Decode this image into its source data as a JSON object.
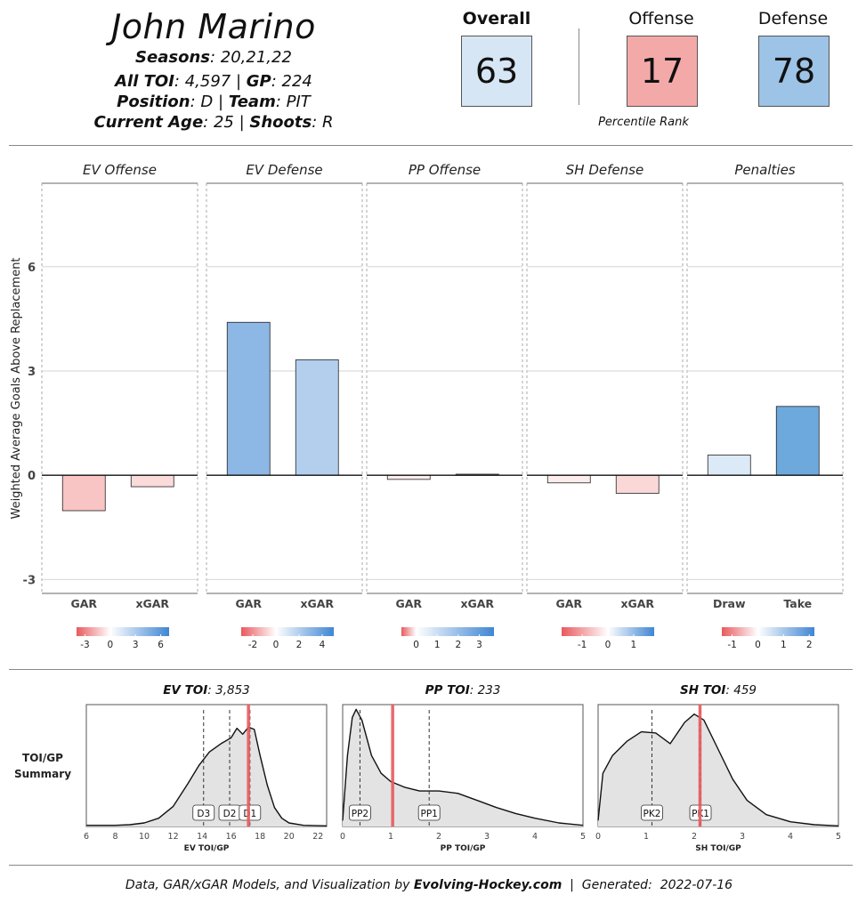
{
  "player": {
    "name": "John Marino",
    "seasons_label": "Seasons",
    "seasons": "20,21,22",
    "toi_label": "All TOI",
    "toi": "4,597",
    "gp_label": "GP",
    "gp": "224",
    "position_label": "Position",
    "position": "D",
    "team_label": "Team",
    "team": "PIT",
    "age_label": "Current Age",
    "age": "25",
    "shoots_label": "Shoots",
    "shoots": "R"
  },
  "ratings": {
    "overall_label": "Overall",
    "overall": "63",
    "offense_label": "Offense",
    "offense": "17",
    "defense_label": "Defense",
    "defense": "78",
    "percentile_label": "Percentile Rank",
    "colors": {
      "overall": "#d6e6f5",
      "offense": "#f4a9a9",
      "defense": "#9dc3e6"
    }
  },
  "chart_data": [
    {
      "type": "bar",
      "ylabel": "Weighted Average Goals Above Replacement",
      "ylim": [
        -3.4,
        8.4
      ],
      "yticks": [
        -3,
        0,
        3,
        6
      ],
      "grid": true,
      "panels": [
        {
          "title": "EV Offense",
          "categories": [
            "GAR",
            "xGAR"
          ],
          "values": [
            -1.02,
            -0.33
          ],
          "colors": [
            "#f8c4c4",
            "#fbdada"
          ],
          "scale": {
            "min": -4,
            "max": 7,
            "ticks": [
              "-3",
              "0",
              "3",
              "6"
            ],
            "tickvals": [
              -3,
              0,
              3,
              6
            ]
          }
        },
        {
          "title": "EV Defense",
          "categories": [
            "GAR",
            "xGAR"
          ],
          "values": [
            4.4,
            3.32
          ],
          "colors": [
            "#8db7e4",
            "#b4cfee"
          ],
          "scale": {
            "min": -3,
            "max": 5,
            "ticks": [
              "-2",
              "0",
              "2",
              "4"
            ],
            "tickvals": [
              -2,
              0,
              2,
              4
            ]
          }
        },
        {
          "title": "PP Offense",
          "categories": [
            "GAR",
            "xGAR"
          ],
          "values": [
            -0.12,
            0.03
          ],
          "colors": [
            "#fdeeee",
            "#fbfcfe"
          ],
          "scale": {
            "min": -0.7,
            "max": 3.7,
            "ticks": [
              "0",
              "1",
              "2",
              "3"
            ],
            "tickvals": [
              0,
              1,
              2,
              3
            ]
          }
        },
        {
          "title": "SH Defense",
          "categories": [
            "GAR",
            "xGAR"
          ],
          "values": [
            -0.22,
            -0.52
          ],
          "colors": [
            "#fcecec",
            "#fad8d8"
          ],
          "scale": {
            "min": -1.8,
            "max": 1.8,
            "ticks": [
              "-1",
              "0",
              "1"
            ],
            "tickvals": [
              -1,
              0,
              1
            ]
          }
        },
        {
          "title": "Penalties",
          "categories": [
            "Draw",
            "Take"
          ],
          "values": [
            0.58,
            1.98
          ],
          "colors": [
            "#dce9f7",
            "#6da9dc"
          ],
          "scale": {
            "min": -1.4,
            "max": 2.2,
            "ticks": [
              "-1",
              "0",
              "1",
              "2"
            ],
            "tickvals": [
              -1,
              0,
              1,
              2
            ]
          }
        }
      ]
    },
    {
      "type": "area",
      "row_label_line1": "TOI/GP",
      "row_label_line2": "Summary",
      "panels": [
        {
          "title_label": "EV TOI",
          "title_value": "3,853",
          "xlabel": "EV TOI/GP",
          "xlim": [
            6,
            22.6
          ],
          "xticks": [
            6,
            8,
            10,
            12,
            14,
            16,
            18,
            20,
            22
          ],
          "density": [
            [
              6,
              0.01
            ],
            [
              8,
              0.01
            ],
            [
              9,
              0.015
            ],
            [
              10,
              0.03
            ],
            [
              11,
              0.07
            ],
            [
              12,
              0.17
            ],
            [
              13,
              0.36
            ],
            [
              13.8,
              0.52
            ],
            [
              14.5,
              0.63
            ],
            [
              15.3,
              0.7
            ],
            [
              16,
              0.75
            ],
            [
              16.4,
              0.83
            ],
            [
              16.8,
              0.78
            ],
            [
              17.2,
              0.84
            ],
            [
              17.6,
              0.82
            ],
            [
              18,
              0.6
            ],
            [
              18.5,
              0.35
            ],
            [
              19,
              0.16
            ],
            [
              19.5,
              0.07
            ],
            [
              20,
              0.03
            ],
            [
              21,
              0.01
            ],
            [
              22.6,
              0.005
            ]
          ],
          "markers": [
            {
              "label": "D3",
              "x": 14.1
            },
            {
              "label": "D2",
              "x": 15.9
            },
            {
              "label": "D1",
              "x": 17.3
            }
          ],
          "player_x": 17.2
        },
        {
          "title_label": "PP TOI",
          "title_value": "233",
          "xlabel": "PP TOI/GP",
          "xlim": [
            0,
            5
          ],
          "xticks": [
            0,
            1,
            2,
            3,
            4,
            5
          ],
          "density": [
            [
              0,
              0.05
            ],
            [
              0.1,
              0.6
            ],
            [
              0.2,
              0.92
            ],
            [
              0.28,
              0.99
            ],
            [
              0.4,
              0.9
            ],
            [
              0.6,
              0.6
            ],
            [
              0.8,
              0.45
            ],
            [
              1.0,
              0.38
            ],
            [
              1.3,
              0.33
            ],
            [
              1.6,
              0.3
            ],
            [
              2.0,
              0.3
            ],
            [
              2.4,
              0.28
            ],
            [
              2.8,
              0.22
            ],
            [
              3.2,
              0.16
            ],
            [
              3.6,
              0.11
            ],
            [
              4.0,
              0.07
            ],
            [
              4.5,
              0.03
            ],
            [
              5,
              0.01
            ]
          ],
          "markers": [
            {
              "label": "PP2",
              "x": 0.36
            },
            {
              "label": "PP1",
              "x": 1.8
            }
          ],
          "player_x": 1.04
        },
        {
          "title_label": "SH TOI",
          "title_value": "459",
          "xlabel": "SH TOI/GP",
          "xlim": [
            0,
            5
          ],
          "xticks": [
            0,
            1,
            2,
            3,
            4,
            5
          ],
          "density": [
            [
              0,
              0.05
            ],
            [
              0.1,
              0.45
            ],
            [
              0.3,
              0.6
            ],
            [
              0.6,
              0.72
            ],
            [
              0.9,
              0.8
            ],
            [
              1.2,
              0.79
            ],
            [
              1.5,
              0.7
            ],
            [
              1.8,
              0.88
            ],
            [
              2.0,
              0.95
            ],
            [
              2.2,
              0.9
            ],
            [
              2.5,
              0.65
            ],
            [
              2.8,
              0.4
            ],
            [
              3.1,
              0.22
            ],
            [
              3.5,
              0.1
            ],
            [
              4.0,
              0.04
            ],
            [
              4.5,
              0.015
            ],
            [
              5,
              0.005
            ]
          ],
          "markers": [
            {
              "label": "PK2",
              "x": 1.12
            },
            {
              "label": "PK1",
              "x": 2.13
            }
          ],
          "player_x": 2.12
        }
      ]
    }
  ],
  "footer": {
    "prefix": "Data, GAR/xGAR Models, and Visualization by ",
    "brand": "Evolving-Hockey.com",
    "separator": "  |  Generated:  ",
    "date": "2022-07-16"
  }
}
